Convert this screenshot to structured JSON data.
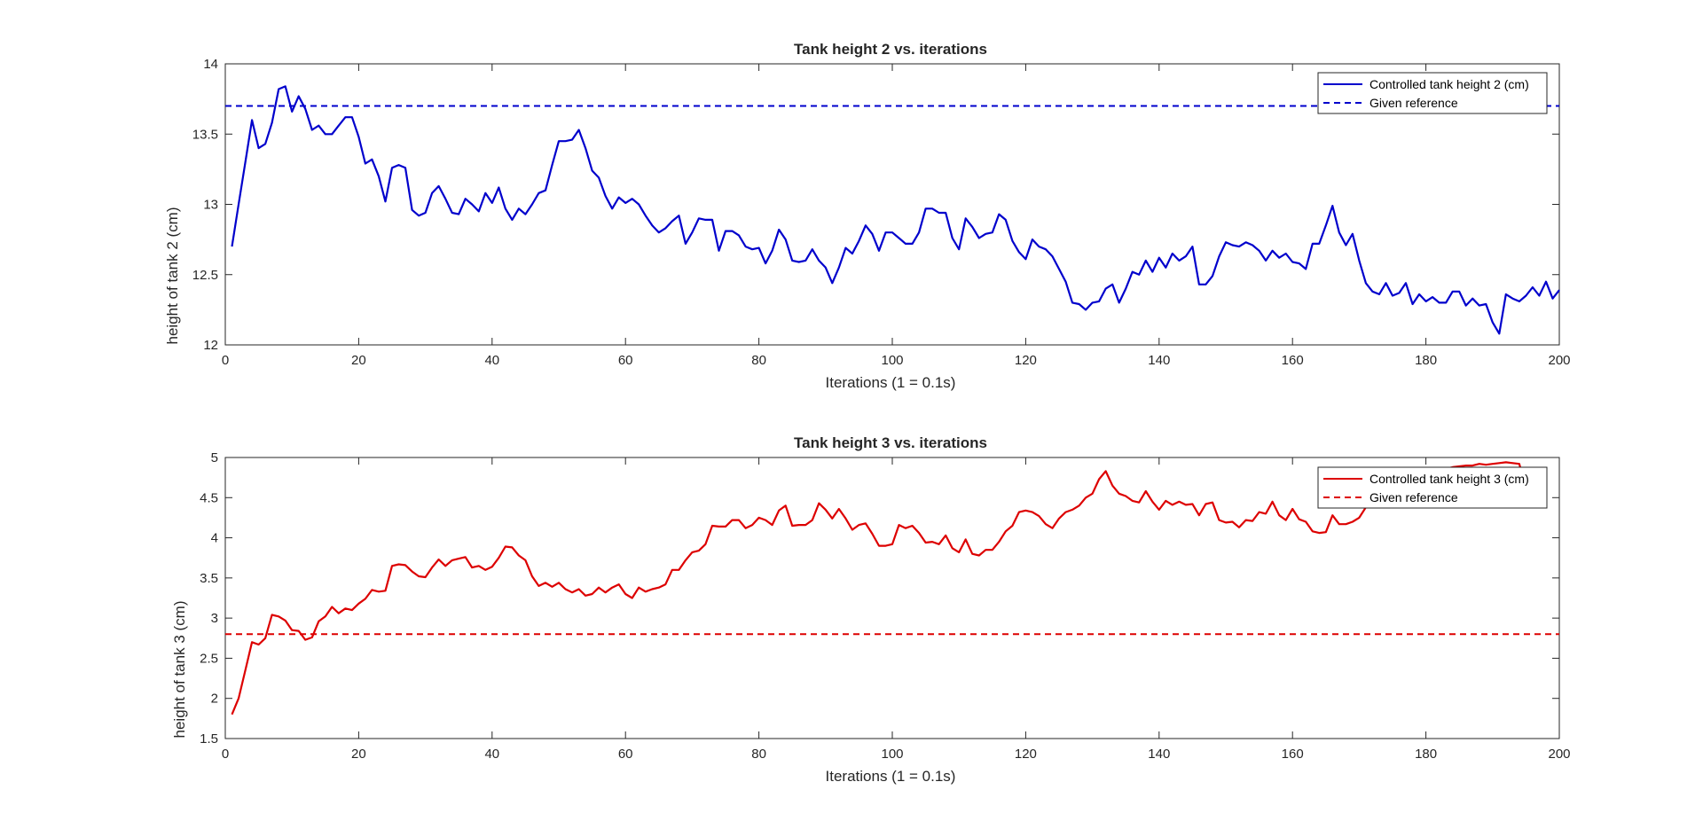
{
  "chart_data": [
    {
      "type": "line",
      "title": "Tank height 2 vs. iterations",
      "xlabel": "Iterations (1 = 0.1s)",
      "ylabel": "height of tank 2 (cm)",
      "xlim": [
        0,
        200
      ],
      "ylim": [
        12,
        14
      ],
      "xticks": [
        "0",
        "20",
        "40",
        "60",
        "80",
        "100",
        "120",
        "140",
        "160",
        "180",
        "200"
      ],
      "yticks": [
        "12",
        "12.5",
        "13",
        "13.5",
        "14"
      ],
      "grid": false,
      "legend_position": "top-right",
      "series": [
        {
          "name": "Controlled tank height 2 (cm)",
          "color": "#0000CC",
          "style": "solid",
          "x_start": 1,
          "x_step": 1,
          "values": [
            12.7,
            13.0,
            13.3,
            13.6,
            13.4,
            13.43,
            13.58,
            13.82,
            13.84,
            13.66,
            13.77,
            13.68,
            13.53,
            13.56,
            13.5,
            13.5,
            13.56,
            13.62,
            13.62,
            13.48,
            13.29,
            13.32,
            13.2,
            13.02,
            13.26,
            13.28,
            13.26,
            12.96,
            12.92,
            12.94,
            13.08,
            13.13,
            13.04,
            12.94,
            12.93,
            13.04,
            13.0,
            12.95,
            13.08,
            13.01,
            13.12,
            12.97,
            12.89,
            12.97,
            12.93,
            13.0,
            13.08,
            13.1,
            13.28,
            13.45,
            13.45,
            13.46,
            13.53,
            13.4,
            13.24,
            13.19,
            13.06,
            12.97,
            13.05,
            13.01,
            13.04,
            13.0,
            12.92,
            12.85,
            12.8,
            12.83,
            12.88,
            12.92,
            12.72,
            12.8,
            12.9,
            12.89,
            12.89,
            12.67,
            12.81,
            12.81,
            12.78,
            12.7,
            12.68,
            12.69,
            12.58,
            12.67,
            12.82,
            12.75,
            12.6,
            12.59,
            12.6,
            12.68,
            12.6,
            12.55,
            12.44,
            12.55,
            12.69,
            12.65,
            12.74,
            12.85,
            12.79,
            12.67,
            12.8,
            12.8,
            12.76,
            12.72,
            12.72,
            12.8,
            12.97,
            12.97,
            12.94,
            12.94,
            12.76,
            12.68,
            12.9,
            12.84,
            12.76,
            12.79,
            12.8,
            12.93,
            12.89,
            12.74,
            12.66,
            12.61,
            12.75,
            12.7,
            12.68,
            12.63,
            12.54,
            12.45,
            12.3,
            12.29,
            12.25,
            12.3,
            12.31,
            12.4,
            12.43,
            12.3,
            12.4,
            12.52,
            12.5,
            12.6,
            12.52,
            12.62,
            12.55,
            12.65,
            12.6,
            12.63,
            12.7,
            12.43,
            12.43,
            12.49,
            12.63,
            12.73,
            12.71,
            12.7,
            12.73,
            12.71,
            12.67,
            12.6,
            12.67,
            12.62,
            12.65,
            12.59,
            12.58,
            12.54,
            12.72,
            12.72,
            12.85,
            12.99,
            12.8,
            12.71,
            12.79,
            12.6,
            12.44,
            12.38,
            12.36,
            12.44,
            12.35,
            12.37,
            12.44,
            12.29,
            12.36,
            12.31,
            12.34,
            12.3,
            12.3,
            12.38,
            12.38,
            12.28,
            12.33,
            12.28,
            12.29,
            12.16,
            12.08,
            12.36,
            12.33,
            12.31,
            12.35,
            12.41,
            12.35,
            12.45,
            12.33,
            12.39
          ]
        },
        {
          "name": "Given reference",
          "color": "#0000CC",
          "style": "dashed",
          "constant": 13.7
        }
      ]
    },
    {
      "type": "line",
      "title": "Tank height 3 vs. iterations",
      "xlabel": "Iterations (1 = 0.1s)",
      "ylabel": "height of tank 3 (cm)",
      "xlim": [
        0,
        200
      ],
      "ylim": [
        1.5,
        5
      ],
      "xticks": [
        "0",
        "20",
        "40",
        "60",
        "80",
        "100",
        "120",
        "140",
        "160",
        "180",
        "200"
      ],
      "yticks": [
        "1.5",
        "2",
        "2.5",
        "3",
        "3.5",
        "4",
        "4.5",
        "5"
      ],
      "grid": false,
      "legend_position": "top-right",
      "series": [
        {
          "name": "Controlled tank height 3 (cm)",
          "color": "#DD0000",
          "style": "solid",
          "x_start": 1,
          "x_step": 1,
          "values": [
            1.8,
            2.0,
            2.35,
            2.7,
            2.67,
            2.75,
            3.04,
            3.02,
            2.97,
            2.85,
            2.84,
            2.73,
            2.76,
            2.96,
            3.02,
            3.14,
            3.06,
            3.12,
            3.1,
            3.18,
            3.24,
            3.35,
            3.33,
            3.34,
            3.65,
            3.67,
            3.66,
            3.58,
            3.52,
            3.51,
            3.63,
            3.73,
            3.65,
            3.72,
            3.74,
            3.76,
            3.63,
            3.65,
            3.6,
            3.64,
            3.75,
            3.89,
            3.88,
            3.78,
            3.72,
            3.52,
            3.4,
            3.44,
            3.39,
            3.44,
            3.36,
            3.32,
            3.36,
            3.28,
            3.3,
            3.38,
            3.32,
            3.38,
            3.42,
            3.3,
            3.25,
            3.38,
            3.33,
            3.36,
            3.38,
            3.42,
            3.6,
            3.6,
            3.72,
            3.82,
            3.84,
            3.92,
            4.15,
            4.14,
            4.14,
            4.22,
            4.22,
            4.12,
            4.16,
            4.25,
            4.22,
            4.16,
            4.34,
            4.4,
            4.15,
            4.16,
            4.16,
            4.22,
            4.43,
            4.35,
            4.24,
            4.36,
            4.24,
            4.1,
            4.16,
            4.18,
            4.05,
            3.9,
            3.9,
            3.92,
            4.16,
            4.12,
            4.15,
            4.06,
            3.94,
            3.95,
            3.92,
            4.03,
            3.87,
            3.82,
            3.98,
            3.8,
            3.78,
            3.85,
            3.85,
            3.95,
            4.08,
            4.15,
            4.32,
            4.34,
            4.32,
            4.27,
            4.17,
            4.12,
            4.24,
            4.32,
            4.35,
            4.4,
            4.5,
            4.55,
            4.73,
            4.83,
            4.65,
            4.55,
            4.52,
            4.46,
            4.44,
            4.58,
            4.45,
            4.35,
            4.46,
            4.41,
            4.45,
            4.41,
            4.42,
            4.28,
            4.42,
            4.44,
            4.22,
            4.19,
            4.2,
            4.13,
            4.22,
            4.21,
            4.32,
            4.3,
            4.45,
            4.28,
            4.22,
            4.36,
            4.23,
            4.2,
            4.08,
            4.06,
            4.07,
            4.28,
            4.17,
            4.17,
            4.2,
            4.25,
            4.38,
            4.46,
            4.5,
            4.55,
            4.6,
            4.65,
            4.7,
            4.74,
            4.78,
            4.8,
            4.82,
            4.85,
            4.86,
            4.88,
            4.89,
            4.9,
            4.9,
            4.92,
            4.91,
            4.92,
            4.93,
            4.94,
            4.93,
            4.92,
            4.6
          ]
        },
        {
          "name": "Given reference",
          "color": "#DD0000",
          "style": "dashed",
          "constant": 2.8
        }
      ]
    }
  ]
}
